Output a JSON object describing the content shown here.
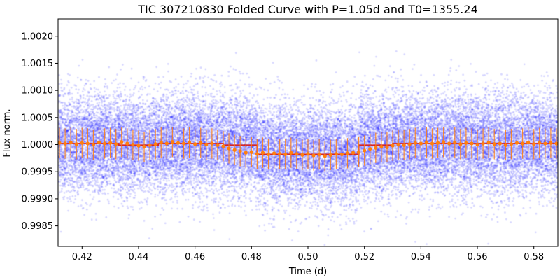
{
  "chart_data": {
    "type": "scatter",
    "title": "TIC 307210830 Folded Curve with P=1.05d and T0=1355.24",
    "xlabel": "Time (d)",
    "ylabel": "Flux norm.",
    "xlim": [
      0.4115,
      0.5885
    ],
    "ylim": [
      0.99812,
      1.00232
    ],
    "x_ticks": [
      0.42,
      0.44,
      0.46,
      0.48,
      0.5,
      0.52,
      0.54,
      0.56,
      0.58
    ],
    "x_tick_labels": [
      "0.42",
      "0.44",
      "0.46",
      "0.48",
      "0.50",
      "0.52",
      "0.54",
      "0.56",
      "0.58"
    ],
    "y_ticks": [
      0.9985,
      0.999,
      0.9995,
      1.0,
      1.0005,
      1.001,
      1.0015,
      1.002
    ],
    "y_tick_labels": [
      "0.9985",
      "0.9990",
      "0.9995",
      "1.0000",
      "1.0005",
      "1.0010",
      "1.0015",
      "1.0020"
    ],
    "grid": false,
    "colors": {
      "raw_points": "#0000ff",
      "binned": "#ff7f0e",
      "model": "#d62728"
    },
    "series": [
      {
        "kind": "raw",
        "x_range": [
          0.4115,
          0.5885
        ],
        "y_center": 1.0,
        "y_spread": 0.00045
      },
      {
        "kind": "model",
        "x": [
          0.4115,
          0.433,
          0.433,
          0.447,
          0.447,
          0.47,
          0.47,
          0.482,
          0.482,
          0.518,
          0.518,
          0.53,
          0.53,
          0.54,
          0.54,
          0.5885
        ],
        "y": [
          1.00002,
          1.00002,
          0.99999,
          0.99999,
          1.00002,
          1.00002,
          0.99999,
          0.99999,
          0.99982,
          0.99982,
          0.99999,
          0.99999,
          1.00002,
          1.00002,
          1.00002,
          1.00002
        ]
      },
      {
        "kind": "binned",
        "x": [
          0.412,
          0.414,
          0.416,
          0.418,
          0.42,
          0.422,
          0.424,
          0.426,
          0.428,
          0.43,
          0.432,
          0.434,
          0.436,
          0.438,
          0.44,
          0.442,
          0.444,
          0.446,
          0.448,
          0.45,
          0.452,
          0.454,
          0.456,
          0.458,
          0.46,
          0.462,
          0.464,
          0.466,
          0.468,
          0.47,
          0.472,
          0.474,
          0.476,
          0.478,
          0.48,
          0.482,
          0.484,
          0.486,
          0.488,
          0.49,
          0.492,
          0.494,
          0.496,
          0.498,
          0.5,
          0.502,
          0.504,
          0.506,
          0.508,
          0.51,
          0.512,
          0.514,
          0.516,
          0.518,
          0.52,
          0.522,
          0.524,
          0.526,
          0.528,
          0.53,
          0.532,
          0.534,
          0.536,
          0.538,
          0.54,
          0.542,
          0.544,
          0.546,
          0.548,
          0.55,
          0.552,
          0.554,
          0.556,
          0.558,
          0.56,
          0.562,
          0.564,
          0.566,
          0.568,
          0.57,
          0.572,
          0.574,
          0.576,
          0.578,
          0.58,
          0.582,
          0.584,
          0.586,
          0.588
        ],
        "y": [
          1.00003,
          1.00002,
          1.00004,
          1.00001,
          1.00003,
          1.00002,
          1.0,
          1.00004,
          1.00002,
          1.00003,
          1.00001,
          1.00005,
          1.00002,
          1.0,
          0.99998,
          0.99996,
          0.99999,
          1.00001,
          1.00004,
          1.00002,
          1.00005,
          1.00003,
          1.00002,
          1.00004,
          1.00001,
          1.00003,
          1.0,
          1.00002,
          0.99999,
          0.99997,
          0.99993,
          0.9999,
          0.99988,
          0.99985,
          0.99986,
          0.99983,
          0.99985,
          0.99982,
          0.99984,
          0.99983,
          0.99982,
          0.99985,
          0.99983,
          0.99981,
          0.99983,
          0.9998,
          0.99982,
          0.99979,
          0.99981,
          0.99983,
          0.99982,
          0.99984,
          0.99985,
          0.99986,
          0.99989,
          0.99992,
          0.99994,
          0.99996,
          0.99995,
          0.99998,
          1.0,
          0.99999,
          1.00001,
          1.00003,
          1.00002,
          1.00004,
          1.00002,
          1.00003,
          1.00005,
          1.00002,
          1.00004,
          1.00001,
          1.00003,
          1.00002,
          1.0,
          1.00002,
          1.00004,
          1.00001,
          1.00002,
          0.99999,
          1.00001,
          1.00003,
          1.00002,
          1.00004,
          1.00001,
          1.00003,
          1.00002,
          1.00003,
          1.00002
        ],
        "y_err": 0.00028
      }
    ]
  }
}
